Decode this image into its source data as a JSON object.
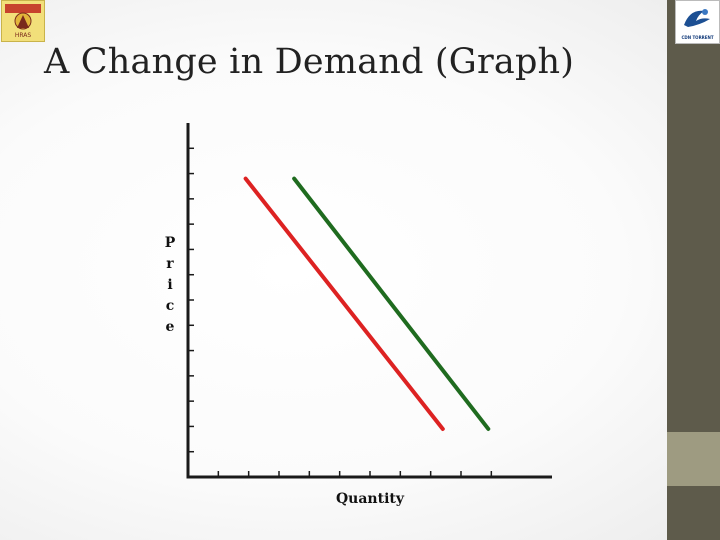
{
  "slide": {
    "title": "A Change in Demand (Graph)"
  },
  "logos": {
    "left": {
      "name": "institution-seal",
      "lettering": "HRAS"
    },
    "right": {
      "name": "org-logo",
      "lettering": "CDN TORRENT"
    }
  },
  "colors": {
    "sidebar": "#5e5b4b",
    "sidebar_accent": "#9e9b81",
    "curve_original": "#dd2222",
    "curve_shifted": "#1f6b1f",
    "axis": "#1a1a1a"
  },
  "chart_data": {
    "type": "line",
    "xlabel": "Quantity",
    "ylabel": "Price",
    "xlim": [
      0,
      12
    ],
    "ylim": [
      0,
      14
    ],
    "x_ticks": [
      1,
      2,
      3,
      4,
      5,
      6,
      7,
      8,
      9,
      10
    ],
    "y_ticks": [
      1,
      2,
      3,
      4,
      5,
      6,
      7,
      8,
      9,
      10,
      11,
      12,
      13
    ],
    "tick_labels_shown": false,
    "grid": false,
    "legend": "none",
    "series": [
      {
        "x": [
          1.9,
          8.4
        ],
        "y": [
          11.8,
          1.9
        ],
        "color": "#dd2222"
      },
      {
        "x": [
          3.5,
          9.9
        ],
        "y": [
          11.8,
          1.9
        ],
        "color": "#1f6b1f"
      }
    ]
  }
}
